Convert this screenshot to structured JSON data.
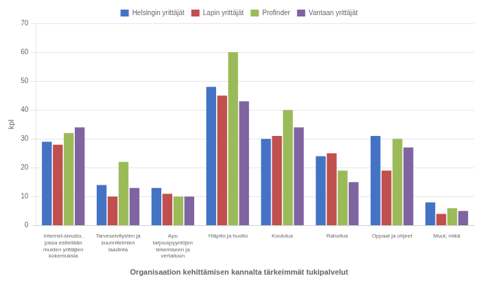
{
  "chart_data": {
    "type": "bar",
    "title": "Organisaation kehittämisen kannalta tärkeimmät tukipalvelut",
    "ylabel": "kpl",
    "categories": [
      "Internet-sivusto,\njossa esitellään\nmuiden yrittäjien\nkokemuksia",
      "Tarveselvitysten ja\nsuunnitelmien\nlaadinta",
      "Apu\ntarjouspyyntöjen\ntekemiseen ja\nvertailuun",
      "Ylläpito ja huolto",
      "Koulutus",
      "Rahoitus",
      "Oppaat ja ohjeet",
      "Muut, mikä"
    ],
    "series": [
      {
        "name": "Helsingin yrittäjät",
        "color": "#4472C4",
        "values": [
          29,
          14,
          13,
          48,
          30,
          24,
          31,
          8
        ]
      },
      {
        "name": "Lapin yrittäjät",
        "color": "#C0504D",
        "values": [
          28,
          10,
          11,
          45,
          31,
          25,
          19,
          4
        ]
      },
      {
        "name": "Profinder",
        "color": "#9BBB59",
        "values": [
          32,
          22,
          10,
          60,
          40,
          19,
          30,
          6
        ]
      },
      {
        "name": "Vantaan yrittäjät",
        "color": "#8064A2",
        "values": [
          34,
          13,
          10,
          43,
          34,
          15,
          27,
          5
        ]
      }
    ],
    "ylim": [
      0,
      70
    ],
    "yticks": [
      0,
      10,
      20,
      30,
      40,
      50,
      60,
      70
    ],
    "grid": true,
    "legend": "top"
  }
}
